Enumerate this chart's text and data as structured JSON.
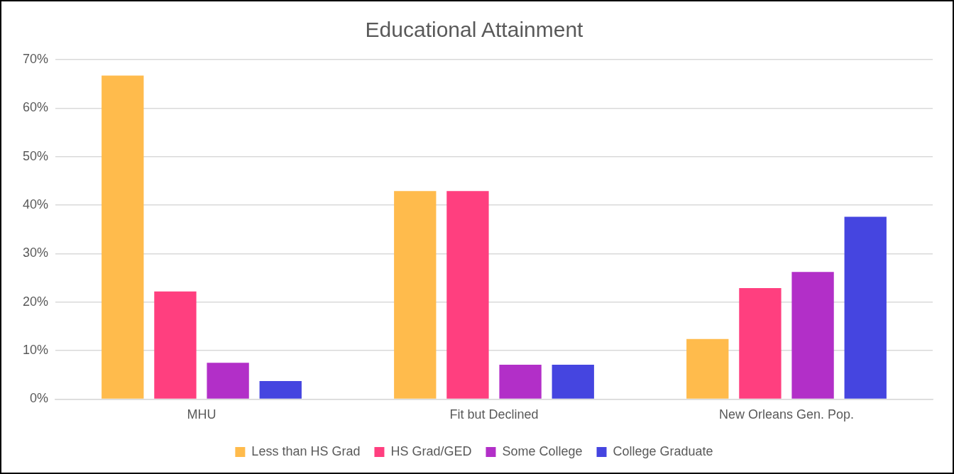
{
  "chart_data": {
    "type": "bar",
    "title": "Educational Attainment",
    "categories": [
      "MHU",
      "Fit but Declined",
      "New Orleans Gen. Pop."
    ],
    "series": [
      {
        "name": "Less than HS Grad",
        "color": "#ffbb4c",
        "values": [
          66.7,
          42.9,
          12.4
        ]
      },
      {
        "name": "HS Grad/GED",
        "color": "#ff3f7f",
        "values": [
          22.2,
          42.9,
          22.9
        ]
      },
      {
        "name": "Some College",
        "color": "#b22fc8",
        "values": [
          7.5,
          7.1,
          26.2
        ]
      },
      {
        "name": "College Graduate",
        "color": "#4545e0",
        "values": [
          3.7,
          7.1,
          37.6
        ]
      }
    ],
    "ylim": [
      0,
      70
    ],
    "yticks": [
      {
        "value": 0,
        "label": "0%"
      },
      {
        "value": 10,
        "label": "10%"
      },
      {
        "value": 20,
        "label": "20%"
      },
      {
        "value": 30,
        "label": "30%"
      },
      {
        "value": 40,
        "label": "40%"
      },
      {
        "value": 50,
        "label": "50%"
      },
      {
        "value": 60,
        "label": "60%"
      },
      {
        "value": 70,
        "label": "70%"
      }
    ],
    "grid": "y",
    "legend": "bottom"
  }
}
